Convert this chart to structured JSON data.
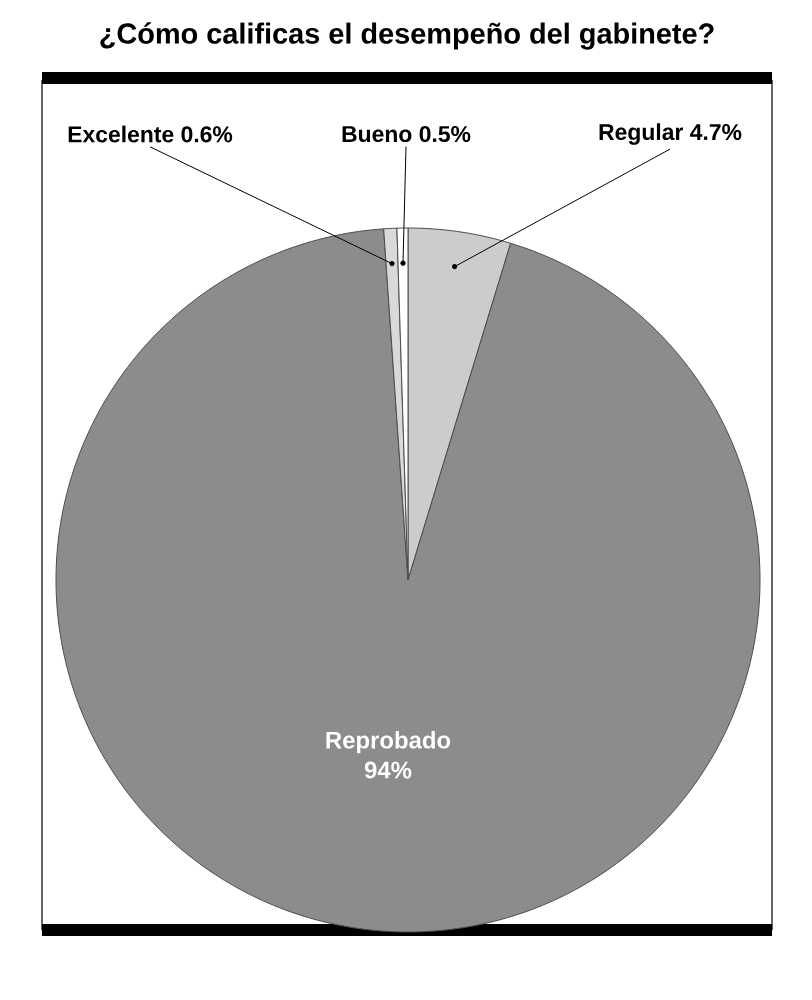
{
  "chart_data": {
    "type": "pie",
    "title": "¿Cómo calificas el desempeño del gabinete?",
    "categories": [
      "Regular",
      "Reprobado",
      "Excelente",
      "Bueno"
    ],
    "values": [
      4.7,
      94,
      0.6,
      0.5
    ],
    "value_labels": [
      "4.7%",
      "94%",
      "0.6%",
      "0.5%"
    ],
    "colors": [
      "#cccccc",
      "#8c8c8c",
      "#d9d9d9",
      "#ffffff"
    ]
  }
}
